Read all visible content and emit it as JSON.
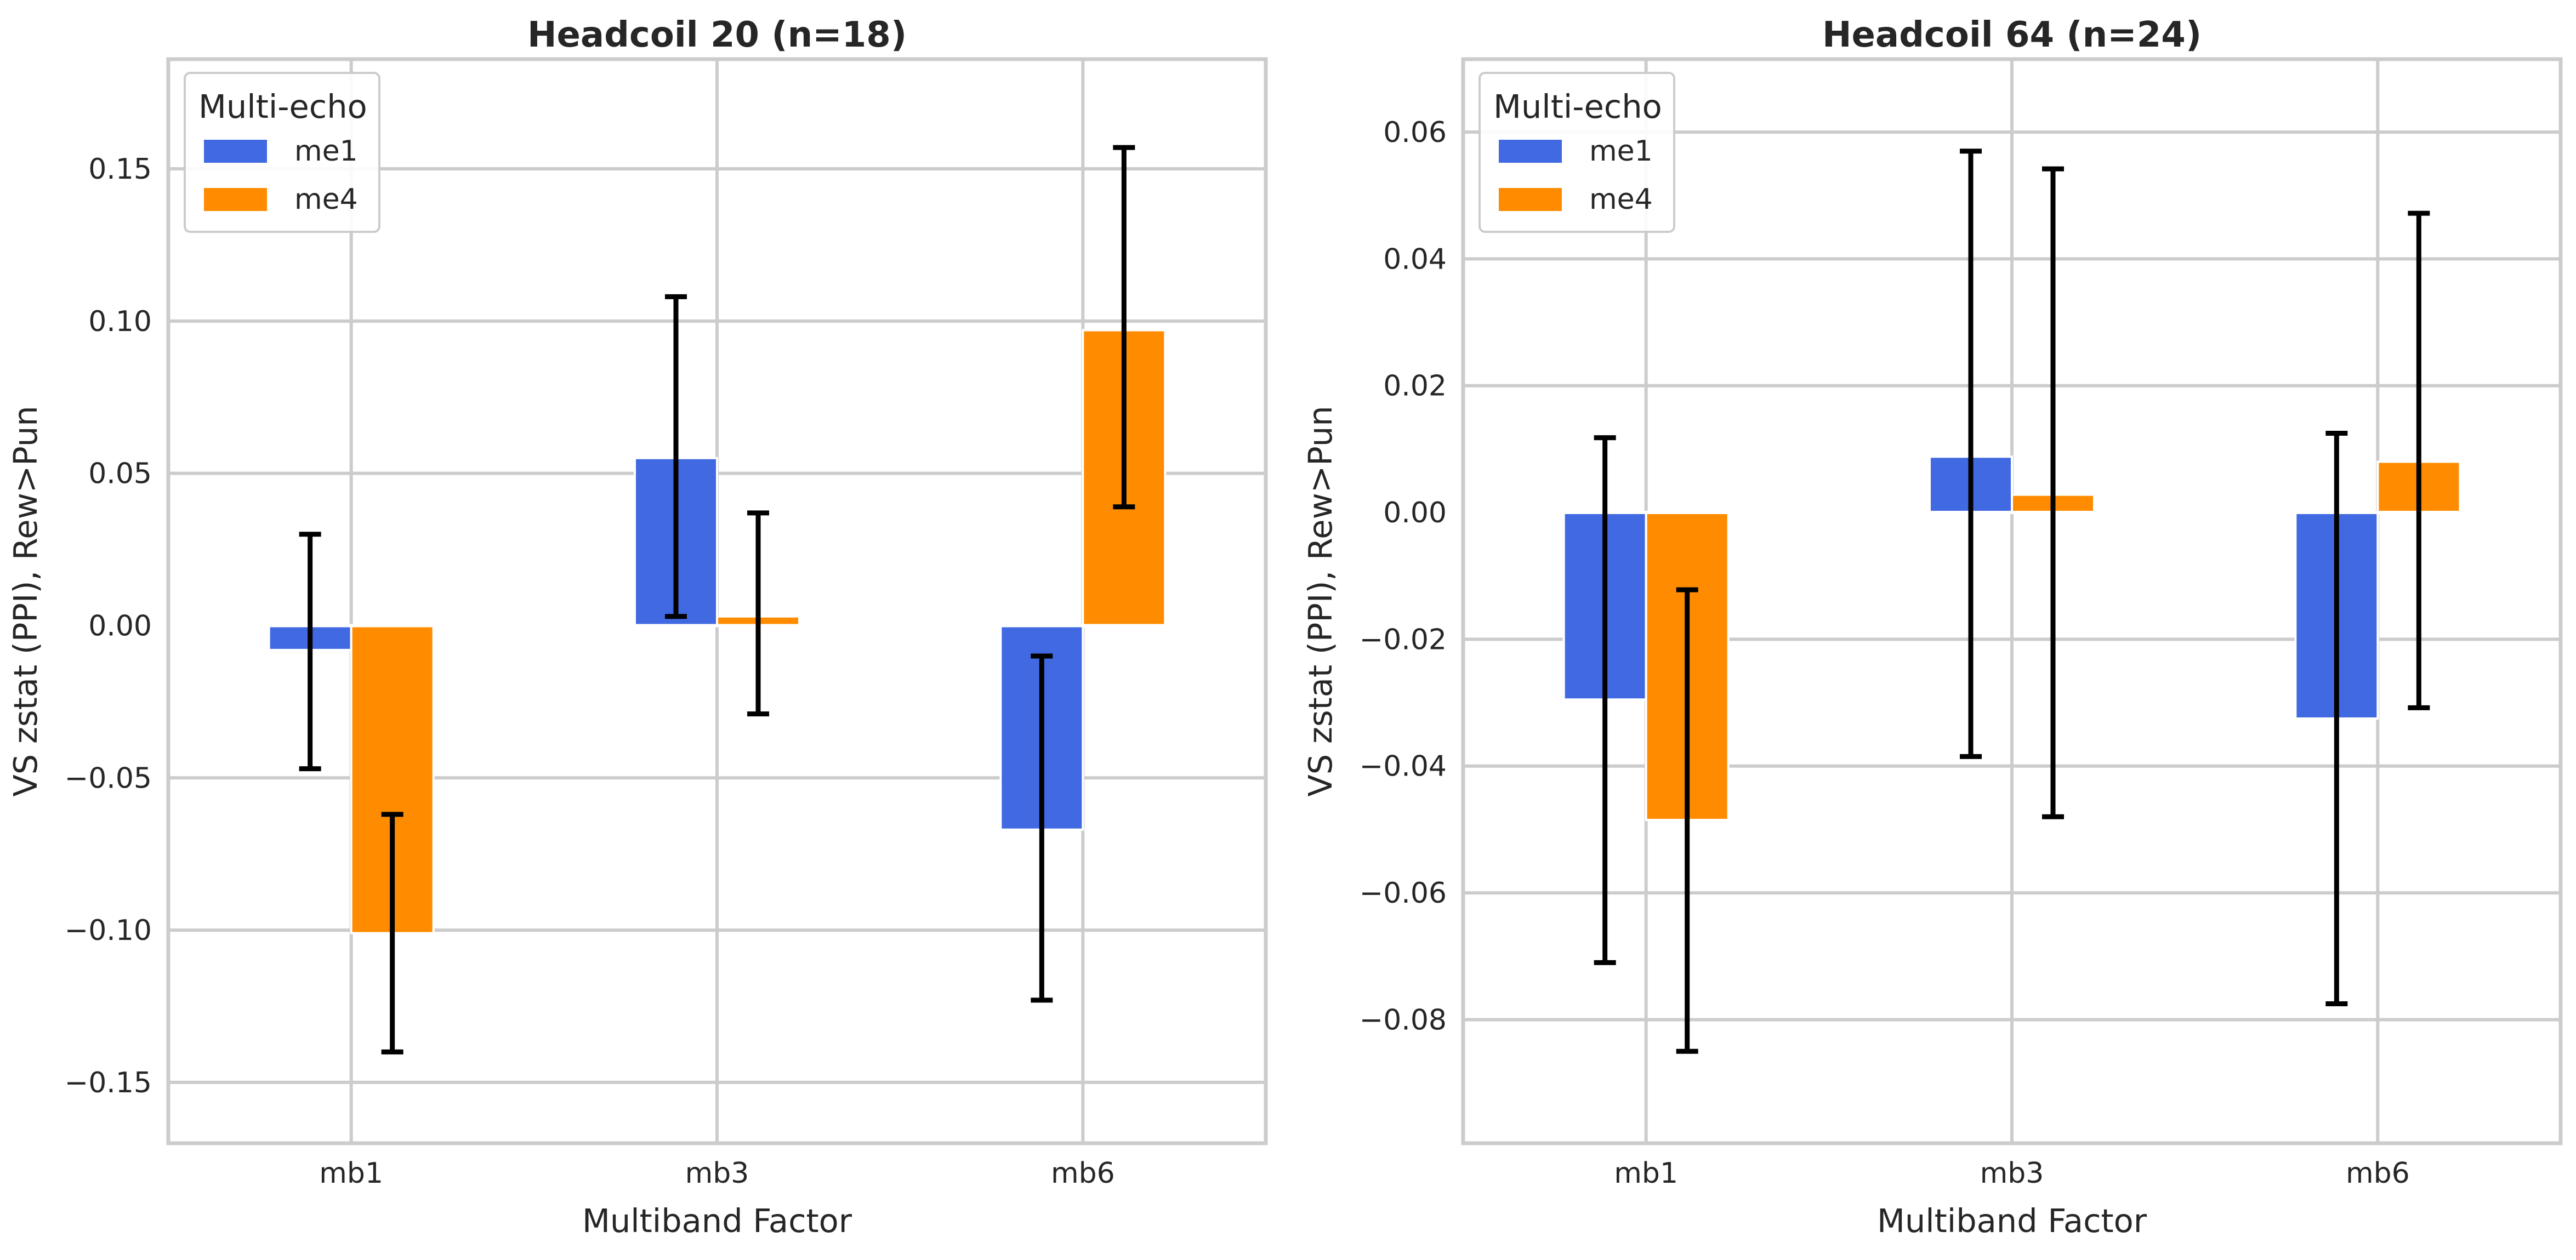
{
  "chart_data": [
    {
      "type": "bar",
      "title": "Headcoil 20 (n=18)",
      "xlabel": "Multiband Factor",
      "ylabel": "VS zstat (PPI), Rew>Pun",
      "categories": [
        "mb1",
        "mb3",
        "mb6"
      ],
      "ylim": [
        -0.17,
        0.186
      ],
      "yticks": [
        -0.15,
        -0.1,
        -0.05,
        0.0,
        0.05,
        0.1,
        0.15
      ],
      "ytick_labels": [
        "−0.15",
        "−0.10",
        "−0.05",
        "0.00",
        "0.05",
        "0.10",
        "0.15"
      ],
      "grid": true,
      "legend": {
        "title": "Multi-echo",
        "placement": "top-left"
      },
      "series": [
        {
          "name": "me1",
          "color": "#4169e1",
          "values": [
            -0.008,
            0.055,
            -0.067
          ],
          "err_low": [
            -0.047,
            0.003,
            -0.123
          ],
          "err_high": [
            0.03,
            0.108,
            -0.01
          ]
        },
        {
          "name": "me4",
          "color": "#ff8c00",
          "values": [
            -0.101,
            0.003,
            0.097
          ],
          "err_low": [
            -0.14,
            -0.029,
            0.039
          ],
          "err_high": [
            -0.062,
            0.037,
            0.157
          ]
        }
      ]
    },
    {
      "type": "bar",
      "title": "Headcoil 64 (n=24)",
      "xlabel": "Multiband Factor",
      "ylabel": "VS zstat (PPI), Rew>Pun",
      "categories": [
        "mb1",
        "mb3",
        "mb6"
      ],
      "ylim": [
        -0.0995,
        0.0715
      ],
      "yticks": [
        -0.08,
        -0.06,
        -0.04,
        -0.02,
        0.0,
        0.02,
        0.04,
        0.06
      ],
      "ytick_labels": [
        "−0.08",
        "−0.06",
        "−0.04",
        "−0.02",
        "0.00",
        "0.02",
        "0.04",
        "0.06"
      ],
      "grid": true,
      "legend": {
        "title": "Multi-echo",
        "placement": "top-left"
      },
      "series": [
        {
          "name": "me1",
          "color": "#4169e1",
          "values": [
            -0.0295,
            0.0088,
            -0.0325
          ],
          "err_low": [
            -0.071,
            -0.0385,
            -0.0775
          ],
          "err_high": [
            0.0118,
            0.057,
            0.0125
          ]
        },
        {
          "name": "me4",
          "color": "#ff8c00",
          "values": [
            -0.0485,
            0.0028,
            0.008
          ],
          "err_low": [
            -0.085,
            -0.048,
            -0.0308
          ],
          "err_high": [
            -0.0122,
            0.0542,
            0.0472
          ]
        }
      ]
    }
  ]
}
